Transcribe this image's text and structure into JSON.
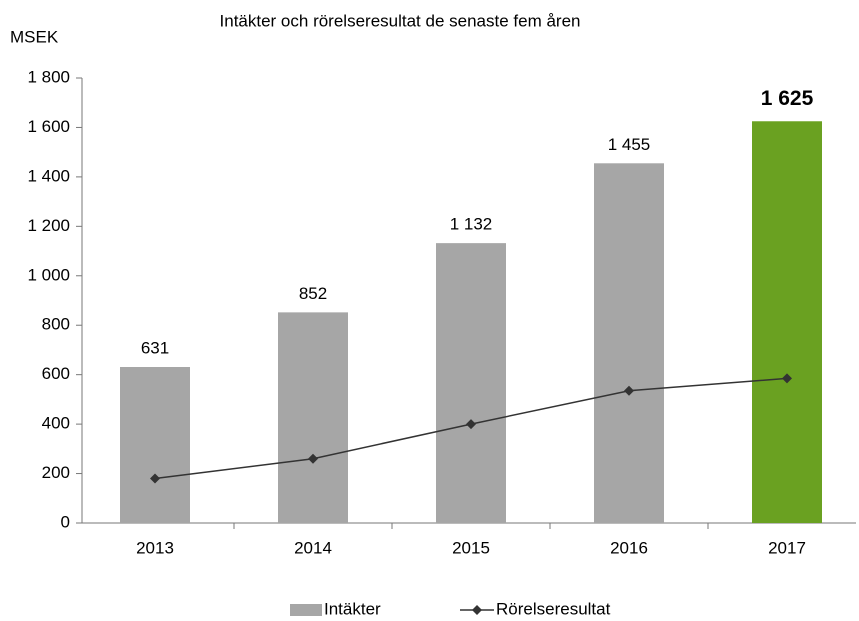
{
  "chart_data": {
    "type": "bar",
    "title": "Intäkter och rörelseresultat de senaste fem åren",
    "y_axis_label": "MSEK",
    "categories": [
      "2013",
      "2014",
      "2015",
      "2016",
      "2017"
    ],
    "series": [
      {
        "name": "Intäkter",
        "type": "bar",
        "color": "#a6a6a6",
        "colors": [
          "#a6a6a6",
          "#a6a6a6",
          "#a6a6a6",
          "#a6a6a6",
          "#6aa121"
        ],
        "values": [
          631,
          852,
          1132,
          1455,
          1625
        ],
        "value_labels": [
          "631",
          "852",
          "1 132",
          "1 455",
          "1 625"
        ]
      },
      {
        "name": "Rörelseresultat",
        "type": "line",
        "color": "#333333",
        "values": [
          180,
          260,
          400,
          535,
          585
        ]
      }
    ],
    "ylim": [
      0,
      1800
    ],
    "yticks": [
      0,
      200,
      400,
      600,
      800,
      {
        "value": 1000,
        "label": "1 000"
      },
      {
        "value": 1200,
        "label": "1 200"
      },
      {
        "value": 1400,
        "label": "1 400"
      },
      {
        "value": 1600,
        "label": "1 600"
      },
      {
        "value": 1800,
        "label": "1 800"
      }
    ],
    "grid": false,
    "legend": "bottom"
  }
}
